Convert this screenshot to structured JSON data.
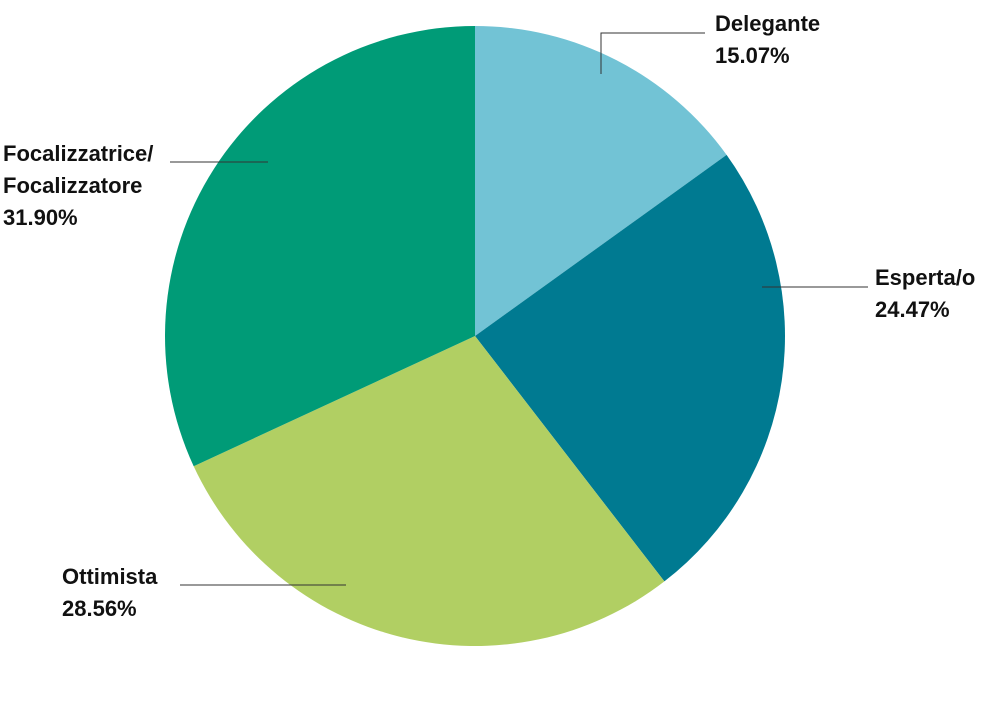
{
  "chart_data": {
    "type": "pie",
    "categories": [
      "Delegante",
      "Esperta/o",
      "Ottimista",
      "Focalizzatrice/\nFocalizzatore"
    ],
    "values": [
      15.07,
      24.47,
      28.56,
      31.9
    ],
    "value_labels": [
      "15.07%",
      "24.47%",
      "28.56%",
      "31.90%"
    ],
    "colors": [
      "#72c3d5",
      "#007a91",
      "#b1cf63",
      "#009b77"
    ]
  }
}
